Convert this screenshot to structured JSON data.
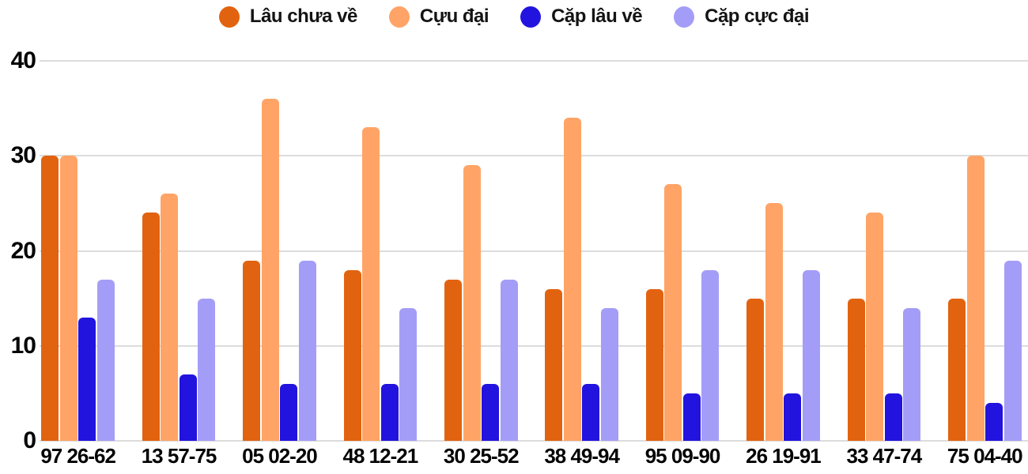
{
  "chart_data": {
    "type": "bar",
    "title": "",
    "xlabel": "",
    "ylabel": "",
    "categories": [
      "97 26-62",
      "13 57-75",
      "05 02-20",
      "48 12-21",
      "30 25-52",
      "38 49-94",
      "95 09-90",
      "26 19-91",
      "33 47-74",
      "75 04-40"
    ],
    "series": [
      {
        "name": "Lâu chưa về",
        "color": "#e2630f",
        "values": [
          30,
          24,
          19,
          18,
          17,
          16,
          16,
          15,
          15,
          15
        ]
      },
      {
        "name": "Cựu đại",
        "color": "#ffa466",
        "values": [
          30,
          26,
          36,
          33,
          29,
          34,
          27,
          25,
          24,
          30
        ]
      },
      {
        "name": "Cặp lâu về",
        "color": "#2214de",
        "values": [
          13,
          7,
          6,
          6,
          6,
          6,
          5,
          5,
          5,
          4
        ]
      },
      {
        "name": "Cặp cực đại",
        "color": "#a49df7",
        "values": [
          17,
          15,
          19,
          14,
          17,
          14,
          18,
          18,
          14,
          19
        ]
      }
    ],
    "yticks": [
      0,
      10,
      20,
      30,
      40
    ],
    "ylim": [
      0,
      40
    ],
    "layout": {
      "legend_position": "top-center",
      "grid": "horizontal",
      "grid_color": "#dcdcdc",
      "text_color": "#030303"
    }
  }
}
